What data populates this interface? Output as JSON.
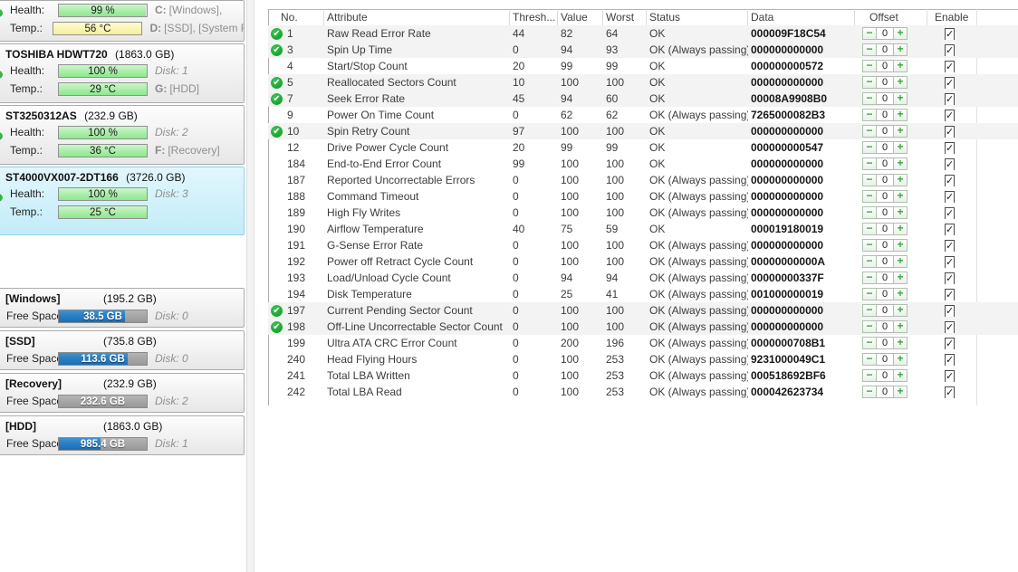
{
  "colors": {
    "check_green": "#18a22e",
    "offset_plusminus_green": "#3aa83a",
    "used_space_blue": "#2a7fc2",
    "health_bar_green": "#a9eda9",
    "temp_warm_yellow": "#f6ef9b",
    "selected_panel_blue": "#c2ecf8"
  },
  "sidebar": {
    "labels": {
      "health": "Health:",
      "temp": "Temp.:",
      "free_space": "Free Space"
    },
    "disks": [
      {
        "show_title": false,
        "title": "",
        "size": "",
        "selected": false,
        "health": "99 %",
        "health_fill": 99,
        "temp": "56 °C",
        "temp_level": "warm",
        "health_info": {
          "prefix": "C:",
          "text": "[Windows],",
          "italic": false
        },
        "temp_info": {
          "prefix": "D:",
          "text": "[SSD],  [System Re",
          "italic": false
        }
      },
      {
        "show_title": true,
        "title": "TOSHIBA HDWT720",
        "size": "(1863.0 GB)",
        "selected": false,
        "health": "100 %",
        "health_fill": 100,
        "temp": "29 °C",
        "temp_level": "green",
        "health_info": {
          "prefix": "",
          "text": "Disk: 1",
          "italic": true
        },
        "temp_info": {
          "prefix": "G:",
          "text": "[HDD]",
          "italic": false
        }
      },
      {
        "show_title": true,
        "title": "ST3250312AS",
        "size": "(232.9 GB)",
        "selected": false,
        "health": "100 %",
        "health_fill": 100,
        "temp": "36 °C",
        "temp_level": "green",
        "health_info": {
          "prefix": "",
          "text": "Disk: 2",
          "italic": true
        },
        "temp_info": {
          "prefix": "F:",
          "text": "[Recovery]",
          "italic": false
        }
      },
      {
        "show_title": true,
        "title": "ST4000VX007-2DT166",
        "size": "(3726.0 GB)",
        "selected": true,
        "health": "100 %",
        "health_fill": 100,
        "temp": "25 °C",
        "temp_level": "green",
        "health_info": {
          "prefix": "",
          "text": "Disk: 3",
          "italic": true
        },
        "temp_info": null
      }
    ],
    "partitions": [
      {
        "name": "[Windows]",
        "size": "(195.2 GB)",
        "free": "38.5 GB",
        "used_fill": 75,
        "info": {
          "prefix": "",
          "text": "Disk: 0",
          "italic": true
        }
      },
      {
        "name": "[SSD]",
        "size": "(735.8 GB)",
        "free": "113.6 GB",
        "used_fill": 78,
        "info": {
          "prefix": "",
          "text": "Disk: 0",
          "italic": true
        }
      },
      {
        "name": "[Recovery]",
        "size": "(232.9 GB)",
        "free": "232.6 GB",
        "used_fill": 0,
        "info": {
          "prefix": "",
          "text": "Disk: 2",
          "italic": true
        }
      },
      {
        "name": "[HDD]",
        "size": "(1863.0 GB)",
        "free": "985.4 GB",
        "used_fill": 47,
        "info": {
          "prefix": "",
          "text": "Disk: 1",
          "italic": true
        }
      }
    ]
  },
  "table": {
    "headers": {
      "no": "No.",
      "attribute": "Attribute",
      "thresh": "Thresh...",
      "value": "Value",
      "worst": "Worst",
      "status": "Status",
      "data": "Data",
      "offset": "Offset",
      "enable": "Enable"
    },
    "rows": [
      {
        "no": "1",
        "icon": true,
        "highlight": true,
        "attribute": "Raw Read Error Rate",
        "thresh": "44",
        "value": "82",
        "worst": "64",
        "status": "OK",
        "data": "000009F18C54",
        "offset": "0",
        "enabled": true
      },
      {
        "no": "3",
        "icon": true,
        "highlight": true,
        "attribute": "Spin Up Time",
        "thresh": "0",
        "value": "94",
        "worst": "93",
        "status": "OK (Always passing)",
        "data": "000000000000",
        "offset": "0",
        "enabled": true
      },
      {
        "no": "4",
        "icon": false,
        "highlight": false,
        "attribute": "Start/Stop Count",
        "thresh": "20",
        "value": "99",
        "worst": "99",
        "status": "OK",
        "data": "000000000572",
        "offset": "0",
        "enabled": true
      },
      {
        "no": "5",
        "icon": true,
        "highlight": true,
        "attribute": "Reallocated Sectors Count",
        "thresh": "10",
        "value": "100",
        "worst": "100",
        "status": "OK",
        "data": "000000000000",
        "offset": "0",
        "enabled": true
      },
      {
        "no": "7",
        "icon": true,
        "highlight": true,
        "attribute": "Seek Error Rate",
        "thresh": "45",
        "value": "94",
        "worst": "60",
        "status": "OK",
        "data": "00008A9908B0",
        "offset": "0",
        "enabled": true
      },
      {
        "no": "9",
        "icon": false,
        "highlight": false,
        "attribute": "Power On Time Count",
        "thresh": "0",
        "value": "62",
        "worst": "62",
        "status": "OK (Always passing)",
        "data": "7265000082B3",
        "offset": "0",
        "enabled": true
      },
      {
        "no": "10",
        "icon": true,
        "highlight": true,
        "attribute": "Spin Retry Count",
        "thresh": "97",
        "value": "100",
        "worst": "100",
        "status": "OK",
        "data": "000000000000",
        "offset": "0",
        "enabled": true
      },
      {
        "no": "12",
        "icon": false,
        "highlight": false,
        "attribute": "Drive Power Cycle Count",
        "thresh": "20",
        "value": "99",
        "worst": "99",
        "status": "OK",
        "data": "000000000547",
        "offset": "0",
        "enabled": true
      },
      {
        "no": "184",
        "icon": false,
        "highlight": false,
        "attribute": "End-to-End Error Count",
        "thresh": "99",
        "value": "100",
        "worst": "100",
        "status": "OK",
        "data": "000000000000",
        "offset": "0",
        "enabled": true
      },
      {
        "no": "187",
        "icon": false,
        "highlight": false,
        "attribute": "Reported Uncorrectable Errors",
        "thresh": "0",
        "value": "100",
        "worst": "100",
        "status": "OK (Always passing)",
        "data": "000000000000",
        "offset": "0",
        "enabled": true
      },
      {
        "no": "188",
        "icon": false,
        "highlight": false,
        "attribute": "Command Timeout",
        "thresh": "0",
        "value": "100",
        "worst": "100",
        "status": "OK (Always passing)",
        "data": "000000000000",
        "offset": "0",
        "enabled": true
      },
      {
        "no": "189",
        "icon": false,
        "highlight": false,
        "attribute": "High Fly Writes",
        "thresh": "0",
        "value": "100",
        "worst": "100",
        "status": "OK (Always passing)",
        "data": "000000000000",
        "offset": "0",
        "enabled": true
      },
      {
        "no": "190",
        "icon": false,
        "highlight": false,
        "attribute": "Airflow Temperature",
        "thresh": "40",
        "value": "75",
        "worst": "59",
        "status": "OK",
        "data": "000019180019",
        "offset": "0",
        "enabled": true
      },
      {
        "no": "191",
        "icon": false,
        "highlight": false,
        "attribute": "G-Sense Error Rate",
        "thresh": "0",
        "value": "100",
        "worst": "100",
        "status": "OK (Always passing)",
        "data": "000000000000",
        "offset": "0",
        "enabled": true
      },
      {
        "no": "192",
        "icon": false,
        "highlight": false,
        "attribute": "Power off Retract Cycle Count",
        "thresh": "0",
        "value": "100",
        "worst": "100",
        "status": "OK (Always passing)",
        "data": "00000000000A",
        "offset": "0",
        "enabled": true
      },
      {
        "no": "193",
        "icon": false,
        "highlight": false,
        "attribute": "Load/Unload Cycle Count",
        "thresh": "0",
        "value": "94",
        "worst": "94",
        "status": "OK (Always passing)",
        "data": "00000000337F",
        "offset": "0",
        "enabled": true
      },
      {
        "no": "194",
        "icon": false,
        "highlight": false,
        "attribute": "Disk Temperature",
        "thresh": "0",
        "value": "25",
        "worst": "41",
        "status": "OK (Always passing)",
        "data": "001000000019",
        "offset": "0",
        "enabled": true
      },
      {
        "no": "197",
        "icon": true,
        "highlight": true,
        "attribute": "Current Pending Sector Count",
        "thresh": "0",
        "value": "100",
        "worst": "100",
        "status": "OK (Always passing)",
        "data": "000000000000",
        "offset": "0",
        "enabled": true
      },
      {
        "no": "198",
        "icon": true,
        "highlight": true,
        "attribute": "Off-Line Uncorrectable Sector Count",
        "thresh": "0",
        "value": "100",
        "worst": "100",
        "status": "OK (Always passing)",
        "data": "000000000000",
        "offset": "0",
        "enabled": true
      },
      {
        "no": "199",
        "icon": false,
        "highlight": false,
        "attribute": "Ultra ATA CRC Error Count",
        "thresh": "0",
        "value": "200",
        "worst": "196",
        "status": "OK (Always passing)",
        "data": "0000000708B1",
        "offset": "0",
        "enabled": true
      },
      {
        "no": "240",
        "icon": false,
        "highlight": false,
        "attribute": "Head Flying Hours",
        "thresh": "0",
        "value": "100",
        "worst": "253",
        "status": "OK (Always passing)",
        "data": "9231000049C1",
        "offset": "0",
        "enabled": true
      },
      {
        "no": "241",
        "icon": false,
        "highlight": false,
        "attribute": "Total LBA Written",
        "thresh": "0",
        "value": "100",
        "worst": "253",
        "status": "OK (Always passing)",
        "data": "000518692BF6",
        "offset": "0",
        "enabled": true
      },
      {
        "no": "242",
        "icon": false,
        "highlight": false,
        "attribute": "Total LBA Read",
        "thresh": "0",
        "value": "100",
        "worst": "253",
        "status": "OK (Always passing)",
        "data": "000042623734",
        "offset": "0",
        "enabled": true
      }
    ]
  }
}
